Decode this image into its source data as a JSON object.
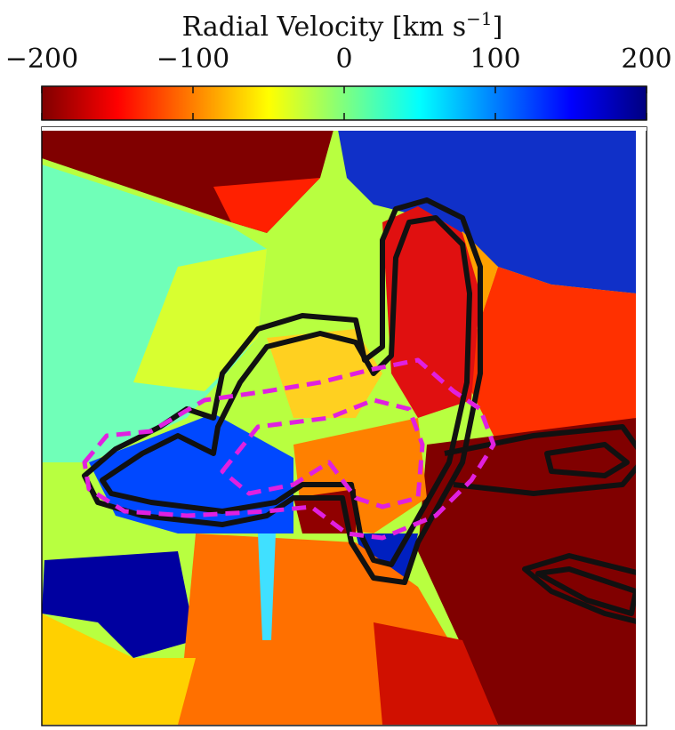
{
  "chart_data": {
    "type": "image",
    "colorbar": {
      "title": "Radial Velocity [km s",
      "title_sup": "−1",
      "title_end": "]",
      "colormap": "jet",
      "xlim": [
        -200,
        200
      ],
      "xticks": [
        {
          "value": -200,
          "label": "−200"
        },
        {
          "value": -100,
          "label": "−100"
        },
        0,
        100,
        200
      ]
    }
  }
}
